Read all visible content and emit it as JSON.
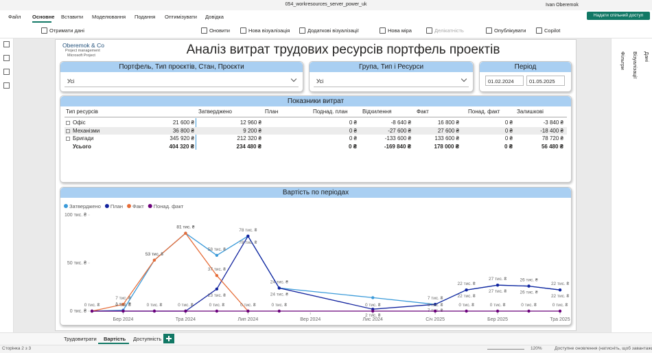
{
  "window": {
    "title": "054_workresources_server_power_uk",
    "user": "Ivan Oberemok",
    "share": "Надати спільний доступ"
  },
  "menu": [
    "Файл",
    "Основне",
    "Вставити",
    "Моделювання",
    "Подання",
    "Оптимізувати",
    "Довідка"
  ],
  "toolbar": [
    "Отримати дані",
    "Оновити",
    "Нова візуалізація",
    "Додаткові візуалізації",
    "Нова міра",
    "Делікатність",
    "Опублікувати",
    "Copilot"
  ],
  "panes": [
    "Фільтри",
    "Візуалізації",
    "Дані"
  ],
  "report": {
    "logo": [
      "Oberemok & Co",
      "Project management",
      "Microsoft Project"
    ],
    "title": "Аналіз витрат трудових ресурсів портфель проектів"
  },
  "slicers": [
    {
      "header": "Портфель, Тип проєктів, Стан, Проєкти",
      "value": "Усі"
    },
    {
      "header": "Група, Тип і Ресурси",
      "value": "Усі"
    },
    {
      "header": "Період",
      "start": "01.02.2024",
      "end": "01.05.2025"
    }
  ],
  "table": {
    "title": "Показники витрат",
    "columns": [
      "Тип ресурсів",
      "Затверджено",
      "План",
      "Поднад. план",
      "Відхилення",
      "Факт",
      "Понад. факт",
      "Залишкові"
    ],
    "rows": [
      [
        "Офіс",
        "21 600 ₴",
        "12 960 ₴",
        "0 ₴",
        "-8 640 ₴",
        "16 800 ₴",
        "0 ₴",
        "-3 840 ₴"
      ],
      [
        "Механізми",
        "36 800 ₴",
        "9 200 ₴",
        "0 ₴",
        "-27 600 ₴",
        "27 600 ₴",
        "0 ₴",
        "-18 400 ₴"
      ],
      [
        "Бригади",
        "345 920 ₴",
        "212 320 ₴",
        "0 ₴",
        "-133 600 ₴",
        "133 600 ₴",
        "0 ₴",
        "78 720 ₴"
      ],
      [
        "Усього",
        "404 320 ₴",
        "234 480 ₴",
        "0 ₴",
        "-169 840 ₴",
        "178 000 ₴",
        "0 ₴",
        "56 480 ₴"
      ]
    ]
  },
  "chart_data": {
    "type": "line",
    "title": "Вартість по періодах",
    "x": [
      "2024-02",
      "2024-03",
      "2024-04",
      "2024-05",
      "2024-06",
      "2024-07",
      "2024-08",
      "2024-11",
      "2025-01",
      "2025-02",
      "2025-03",
      "2025-04",
      "2025-05"
    ],
    "xlim": [
      "2024-02",
      "2025-05"
    ],
    "xticks": [
      {
        "value": "2024-03",
        "label": "Бер 2024"
      },
      {
        "value": "2024-05",
        "label": "Тра 2024"
      },
      {
        "value": "2024-07",
        "label": "Лип 2024"
      },
      {
        "value": "2024-09",
        "label": "Вер 2024"
      },
      {
        "value": "2024-11",
        "label": "Лис 2024"
      },
      {
        "value": "2025-01",
        "label": "Січ 2025"
      },
      {
        "value": "2025-03",
        "label": "Бер 2025"
      },
      {
        "value": "2025-05",
        "label": "Тра 2025"
      }
    ],
    "ylim": [
      0,
      100
    ],
    "yticks": [
      {
        "value": 0,
        "label": "0 тис. ₴"
      },
      {
        "value": 50,
        "label": "50 тис. ₴"
      },
      {
        "value": 100,
        "label": "100 тис. ₴"
      }
    ],
    "legend": "top-left",
    "series": [
      {
        "name": "Затверджено",
        "color": "#3a9ad9",
        "values": [
          0,
          1,
          53,
          81,
          58,
          78,
          24,
          14,
          7,
          22,
          27,
          26,
          22
        ],
        "value_labels": [
          null,
          "1 тис. ₴",
          "53 тис. ₴",
          "81 тис. ₴",
          "58 тис. ₴",
          "78 тис. ₴",
          "24 тис. ₴",
          null,
          "7 тис. ₴",
          "22 тис. ₴",
          "27 тис. ₴",
          "26 тис. ₴",
          "22 тис. ₴"
        ]
      },
      {
        "name": "План",
        "color": "#12239e",
        "values": [
          0,
          0,
          0,
          0,
          23,
          78,
          24,
          2,
          7,
          22,
          27,
          26,
          22
        ],
        "value_labels": [
          null,
          null,
          null,
          null,
          "23 тис. ₴",
          "78 тис. ₴",
          "24 тис. ₴",
          "2 тис. ₴",
          "7 тис. ₴",
          "22 тис. ₴",
          "27 тис. ₴",
          "26 тис. ₴",
          "22 тис. ₴"
        ]
      },
      {
        "name": "Факт",
        "color": "#e66c37",
        "values": [
          0,
          7,
          53,
          81,
          37,
          0,
          null,
          null,
          null,
          null,
          null,
          null,
          null
        ],
        "value_labels": [
          null,
          "7 тис. ₴",
          "53 тис. ₴",
          "81 тис. ₴",
          "37 тис. ₴",
          null,
          null,
          null,
          null,
          null,
          null,
          null,
          null
        ]
      },
      {
        "name": "Понад. факт",
        "color": "#6b007b",
        "values": [
          0,
          0,
          0,
          0,
          0,
          0,
          0,
          0,
          0,
          0,
          0,
          0,
          0
        ],
        "value_labels": [
          "0 тис. ₴",
          "0 тис. ₴",
          "0 тис. ₴",
          "0 тис. ₴",
          "0 тис. ₴",
          "0 тис. ₴",
          "0 тис. ₴",
          "0 тис. ₴",
          "0 тис. ₴",
          "0 тис. ₴",
          "0 тис. ₴",
          "0 тис. ₴",
          "0 тис. ₴"
        ]
      }
    ]
  },
  "pages": [
    "Трудовитрати",
    "Вартість",
    "Доступність"
  ],
  "status": {
    "page": "Сторінка 2 з 3",
    "zoom": "120%",
    "update": "Доступне оновлення (натисніть, щоб завантажити)"
  }
}
